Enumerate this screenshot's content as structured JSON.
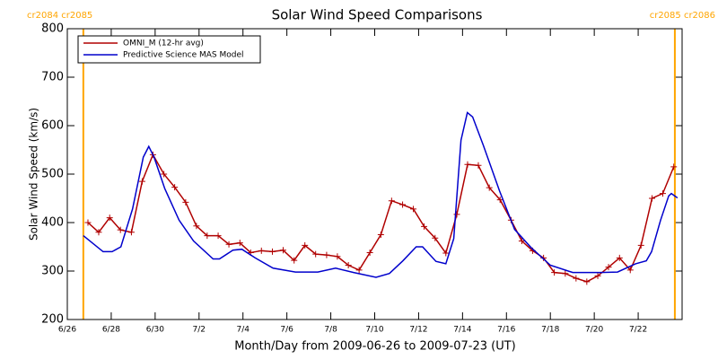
{
  "chart_data": {
    "type": "line",
    "title": "Solar Wind Speed Comparisons",
    "x_label": "Month/Day from 2009-06-26 to 2009-07-23 (UT)",
    "y_label": "Solar Wind Speed (km/s)",
    "xlim": [
      0,
      28
    ],
    "xticks": [
      {
        "value": 0,
        "label": "6/26"
      },
      {
        "value": 2,
        "label": "6/28"
      },
      {
        "value": 4,
        "label": "6/30"
      },
      {
        "value": 6,
        "label": "7/2"
      },
      {
        "value": 8,
        "label": "7/4"
      },
      {
        "value": 10,
        "label": "7/6"
      },
      {
        "value": 12,
        "label": "7/8"
      },
      {
        "value": 14,
        "label": "7/10"
      },
      {
        "value": 16,
        "label": "7/12"
      },
      {
        "value": 18,
        "label": "7/14"
      },
      {
        "value": 20,
        "label": "7/16"
      },
      {
        "value": 22,
        "label": "7/18"
      },
      {
        "value": 24,
        "label": "7/20"
      },
      {
        "value": 26,
        "label": "7/22"
      }
    ],
    "ylim": [
      200,
      800
    ],
    "yticks": [
      200,
      300,
      400,
      500,
      600,
      700,
      800
    ],
    "legend": "upper left",
    "annotations": [
      {
        "text": "cr2084 cr2085",
        "x": 0.73,
        "color": "#ffa500"
      },
      {
        "text": "cr2085 cr2086",
        "x": 27.67,
        "color": "#ffa500"
      }
    ],
    "series": [
      {
        "name": "OMNI_M (12-hr avg)",
        "color": "#b00000",
        "marker": "+",
        "x": [
          0.94,
          1.43,
          1.93,
          2.42,
          2.92,
          3.41,
          3.9,
          4.4,
          4.89,
          5.39,
          5.88,
          6.37,
          6.87,
          7.36,
          7.86,
          8.35,
          8.84,
          9.34,
          9.83,
          10.33,
          10.82,
          11.31,
          11.81,
          12.3,
          12.8,
          13.29,
          13.78,
          14.28,
          14.77,
          15.27,
          15.76,
          16.25,
          16.75,
          17.24,
          17.74,
          18.23,
          18.72,
          19.22,
          19.71,
          20.21,
          20.7,
          21.19,
          21.69,
          22.18,
          22.68,
          23.17,
          23.66,
          24.16,
          24.65,
          25.15,
          25.64,
          26.13,
          26.63,
          27.12,
          27.62
        ],
        "values": [
          400,
          380,
          410,
          385,
          380,
          485,
          540,
          500,
          473,
          442,
          393,
          373,
          373,
          355,
          358,
          338,
          342,
          340,
          343,
          322,
          353,
          335,
          333,
          330,
          312,
          302,
          338,
          375,
          445,
          437,
          428,
          392,
          368,
          337,
          417,
          520,
          518,
          472,
          447,
          405,
          362,
          342,
          327,
          297,
          295,
          285,
          278,
          290,
          308,
          327,
          302,
          353,
          450,
          460,
          515
        ]
      },
      {
        "name": "Predictive Science MAS Model",
        "color": "#0000cc",
        "x": [
          0.73,
          1.63,
          2.04,
          2.44,
          2.97,
          3.46,
          3.71,
          3.95,
          4.44,
          5.09,
          5.75,
          6.64,
          6.93,
          7.54,
          7.95,
          8.56,
          9.37,
          10.39,
          11.41,
          12.22,
          13.04,
          14.06,
          14.67,
          15.28,
          15.89,
          16.18,
          16.79,
          17.24,
          17.6,
          17.93,
          18.22,
          18.46,
          18.95,
          19.68,
          20.37,
          21.11,
          22.0,
          23.02,
          24.25,
          25.06,
          25.88,
          26.37,
          26.61,
          27.02,
          27.39,
          27.51,
          27.79
        ],
        "values": [
          373,
          340,
          340,
          350,
          428,
          535,
          557,
          535,
          470,
          405,
          362,
          325,
          325,
          343,
          345,
          327,
          306,
          298,
          298,
          306,
          297,
          287,
          295,
          321,
          350,
          350,
          320,
          315,
          367,
          570,
          627,
          618,
          559,
          466,
          386,
          349,
          312,
          297,
          297,
          298,
          315,
          321,
          340,
          405,
          455,
          460,
          451
        ]
      }
    ]
  }
}
